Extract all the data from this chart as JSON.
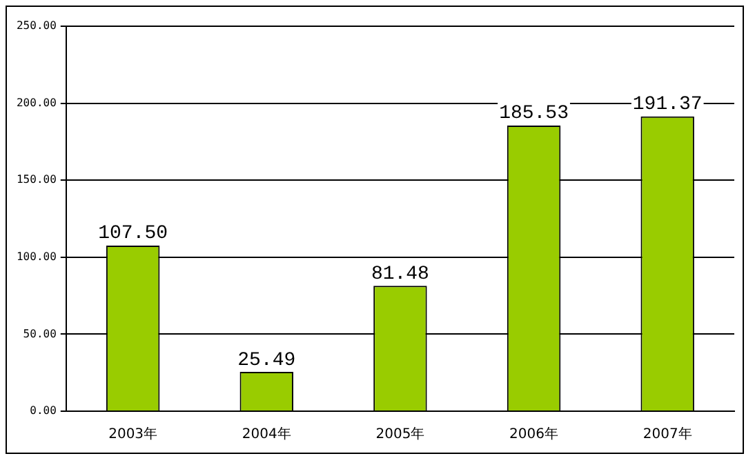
{
  "chart_data": {
    "type": "bar",
    "categories": [
      "2003年",
      "2004年",
      "2005年",
      "2006年",
      "2007年"
    ],
    "values": [
      107.5,
      25.49,
      81.48,
      185.53,
      191.37
    ],
    "value_labels": [
      "107.50",
      "25.49",
      "81.48",
      "185.53",
      "191.37"
    ],
    "color": "#99cc00",
    "ylim": [
      0,
      250
    ],
    "yticks": [
      {
        "value": 0,
        "label": "0.00"
      },
      {
        "value": 50,
        "label": "50.00"
      },
      {
        "value": 100,
        "label": "100.00"
      },
      {
        "value": 150,
        "label": "150.00"
      },
      {
        "value": 200,
        "label": "200.00"
      },
      {
        "value": 250,
        "label": "250.00"
      }
    ],
    "grid": "y",
    "legend": false
  }
}
